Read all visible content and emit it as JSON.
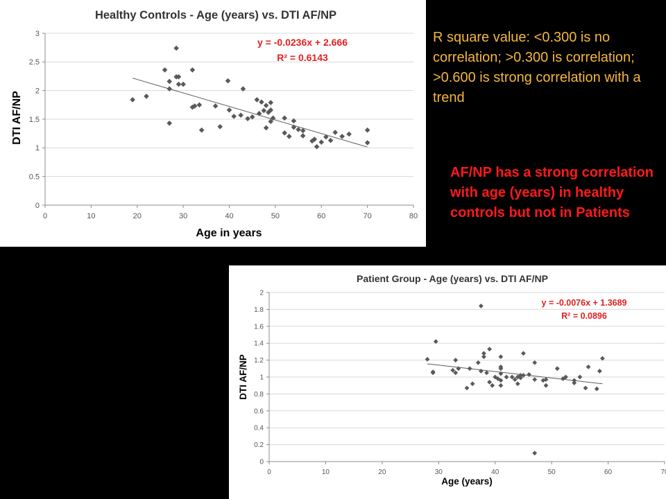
{
  "colors": {
    "background": "#000000",
    "panel": "#ffffff",
    "marker": "#595959",
    "trendline": "#595959",
    "equation": "#e02020",
    "note_orange": "#f5b83d",
    "note_red": "#ff1a1a",
    "gridline": "#d9d9d9"
  },
  "notes": {
    "rsquare": "R square value: <0.300 is no correlation;  >0.300 is correlation; >0.600 is strong correlation with a trend",
    "conclusion": "AF/NP has a strong correlation with age (years) in healthy controls but not in Patients"
  },
  "chart_data": [
    {
      "type": "scatter",
      "title": "Healthy Controls - Age (years) vs. DTI AF/NP",
      "xlabel": "Age in years",
      "ylabel": "DTI AF/NP",
      "xlim": [
        0,
        80
      ],
      "ylim": [
        0,
        3
      ],
      "xticks": [
        0,
        10,
        20,
        30,
        40,
        50,
        60,
        70,
        80
      ],
      "xtick_labels": [
        "0",
        "10",
        "20",
        "30",
        "40",
        "50",
        "60",
        "70",
        "80"
      ],
      "yticks": [
        0,
        0.5,
        1,
        1.5,
        2,
        2.5,
        3
      ],
      "ytick_labels": [
        "0",
        "0.5",
        "1",
        "1.5",
        "2",
        "2.5",
        "3"
      ],
      "grid": "horizontal",
      "equation": "y = -0.0236x + 2.666",
      "r_squared": "R² = 0.6143",
      "trendline": {
        "slope": -0.0236,
        "intercept": 2.666,
        "x_range": [
          19,
          70
        ]
      },
      "points": [
        [
          19,
          1.84
        ],
        [
          22,
          1.9
        ],
        [
          26,
          2.36
        ],
        [
          27,
          2.03
        ],
        [
          27,
          2.16
        ],
        [
          27,
          1.43
        ],
        [
          28.5,
          2.74
        ],
        [
          28.5,
          2.24
        ],
        [
          29,
          2.11
        ],
        [
          29,
          2.24
        ],
        [
          30,
          2.11
        ],
        [
          32,
          2.36
        ],
        [
          32,
          1.71
        ],
        [
          32.5,
          1.73
        ],
        [
          33.5,
          1.75
        ],
        [
          34,
          1.31
        ],
        [
          37,
          1.73
        ],
        [
          38,
          1.37
        ],
        [
          39.7,
          2.17
        ],
        [
          40,
          1.66
        ],
        [
          41,
          1.55
        ],
        [
          42.5,
          1.57
        ],
        [
          43,
          2.03
        ],
        [
          44,
          1.51
        ],
        [
          45,
          1.54
        ],
        [
          46,
          1.84
        ],
        [
          46.5,
          1.6
        ],
        [
          47,
          1.8
        ],
        [
          47.5,
          1.65
        ],
        [
          48,
          1.74
        ],
        [
          48,
          1.35
        ],
        [
          48.5,
          1.62
        ],
        [
          49,
          1.79
        ],
        [
          49,
          1.66
        ],
        [
          49,
          1.46
        ],
        [
          49.5,
          1.52
        ],
        [
          52,
          1.52
        ],
        [
          52,
          1.26
        ],
        [
          53,
          1.2
        ],
        [
          54,
          1.47
        ],
        [
          54,
          1.36
        ],
        [
          55,
          1.32
        ],
        [
          56,
          1.21
        ],
        [
          56,
          1.3
        ],
        [
          58,
          1.12
        ],
        [
          58.5,
          1.15
        ],
        [
          59,
          1.02
        ],
        [
          60,
          1.1
        ],
        [
          61,
          1.19
        ],
        [
          62,
          1.13
        ],
        [
          63,
          1.27
        ],
        [
          64.5,
          1.2
        ],
        [
          66,
          1.24
        ],
        [
          70,
          1.31
        ],
        [
          70,
          1.09
        ]
      ]
    },
    {
      "type": "scatter",
      "title": "Patient Group - Age (years) vs. DTI AF/NP",
      "xlabel": "Age (years)",
      "ylabel": "DTI AF/NP",
      "xlim": [
        0,
        70
      ],
      "ylim": [
        0,
        2
      ],
      "xticks": [
        0,
        10,
        20,
        30,
        40,
        50,
        60,
        70
      ],
      "xtick_labels": [
        "0",
        "10",
        "20",
        "30",
        "40",
        "50",
        "60",
        "70"
      ],
      "yticks": [
        0,
        0.2,
        0.4,
        0.6,
        0.8,
        1,
        1.2,
        1.4,
        1.6,
        1.8,
        2
      ],
      "ytick_labels": [
        "0",
        "0.2",
        "0.4",
        "0.6",
        "0.8",
        "1",
        "1.2",
        "1.4",
        "1.6",
        "1.8",
        "2"
      ],
      "grid": "horizontal",
      "equation": "y = -0.0076x + 1.3689",
      "r_squared": "R² = 0.0896",
      "trendline": {
        "slope": -0.0076,
        "intercept": 1.3689,
        "x_range": [
          28,
          59
        ]
      },
      "points": [
        [
          28,
          1.21
        ],
        [
          29,
          1.06
        ],
        [
          29,
          1.05
        ],
        [
          29.5,
          1.42
        ],
        [
          32.5,
          1.08
        ],
        [
          33,
          1.2
        ],
        [
          33,
          1.05
        ],
        [
          33.5,
          1.1
        ],
        [
          35,
          0.87
        ],
        [
          35.5,
          1.1
        ],
        [
          36,
          0.92
        ],
        [
          37,
          1.17
        ],
        [
          37.5,
          1.84
        ],
        [
          37.5,
          1.07
        ],
        [
          38,
          1.24
        ],
        [
          38,
          1.28
        ],
        [
          38.5,
          1.05
        ],
        [
          39,
          1.33
        ],
        [
          39,
          0.94
        ],
        [
          39.5,
          0.9
        ],
        [
          40,
          1.0
        ],
        [
          40.5,
          0.98
        ],
        [
          41,
          1.12
        ],
        [
          41,
          1.1
        ],
        [
          41,
          1.04
        ],
        [
          41,
          0.96
        ],
        [
          41,
          0.9
        ],
        [
          41,
          1.24
        ],
        [
          42,
          1.0
        ],
        [
          43,
          1.0
        ],
        [
          43.5,
          0.97
        ],
        [
          44,
          0.92
        ],
        [
          44,
          1.0
        ],
        [
          44.5,
          1.02
        ],
        [
          44.5,
          0.99
        ],
        [
          45,
          1.28
        ],
        [
          45,
          1.02
        ],
        [
          46,
          1.03
        ],
        [
          47,
          1.17
        ],
        [
          47,
          0.97
        ],
        [
          47,
          0.1
        ],
        [
          48.5,
          0.96
        ],
        [
          49,
          0.9
        ],
        [
          49,
          0.97
        ],
        [
          51,
          1.1
        ],
        [
          52,
          0.98
        ],
        [
          52.5,
          1.0
        ],
        [
          54,
          0.96
        ],
        [
          54,
          0.93
        ],
        [
          55,
          1.0
        ],
        [
          56,
          0.87
        ],
        [
          56.5,
          1.12
        ],
        [
          58,
          0.86
        ],
        [
          58.5,
          1.07
        ],
        [
          59,
          1.22
        ]
      ]
    }
  ]
}
